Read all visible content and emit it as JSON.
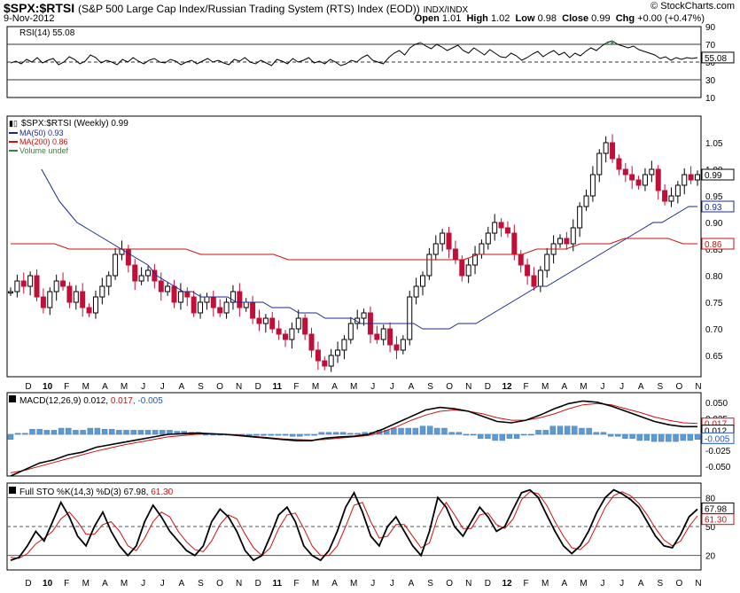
{
  "header": {
    "symbol": "$SPX:$RTSI",
    "name": "(S&P 500 Large Cap Index/Russian Trading System (RTS) Index (EOD))",
    "exchange": "INDX/INDX",
    "date": "9-Nov-2012",
    "brand": "© StockCharts.com",
    "open_label": "Open",
    "open": "1.01",
    "high_label": "High",
    "high": "1.02",
    "low_label": "Low",
    "low": "0.98",
    "close_label": "Close",
    "close": "0.99",
    "chg_label": "Chg",
    "chg": "+0.00 (+0.47%)"
  },
  "chart_data": [
    {
      "type": "line",
      "panel": "rsi",
      "label": "RSI(14) 55.08",
      "yticks": [
        90,
        70,
        50,
        30,
        10
      ],
      "ylim": [
        10,
        90
      ],
      "ref_lines": [
        70,
        50,
        30
      ],
      "last_value": "55.08",
      "series": [
        {
          "name": "RSI(14)",
          "values": [
            49,
            51,
            48,
            53,
            50,
            55,
            49,
            52,
            54,
            47,
            50,
            56,
            53,
            48,
            51,
            58,
            55,
            49,
            52,
            50,
            47,
            53,
            50,
            55,
            51,
            48,
            52,
            54,
            50,
            49,
            53,
            51,
            47,
            50,
            52,
            48,
            51,
            54,
            50,
            52,
            49,
            47,
            53,
            51,
            55,
            50,
            48,
            52,
            49,
            46,
            53,
            51,
            48,
            54,
            50,
            52,
            55,
            49,
            51,
            48,
            53,
            50,
            46,
            48,
            52,
            50,
            55,
            58,
            52,
            50,
            48,
            55,
            60,
            63,
            58,
            66,
            70,
            72,
            68,
            65,
            70,
            67,
            63,
            66,
            69,
            63,
            60,
            66,
            62,
            58,
            64,
            60,
            56,
            55,
            60,
            57,
            52,
            55,
            59,
            62,
            56,
            60,
            63,
            58,
            61,
            55,
            60,
            57,
            62,
            66,
            63,
            68,
            72,
            74,
            70,
            68,
            66,
            68,
            64,
            62,
            60,
            58,
            54,
            56,
            52,
            55,
            53,
            55,
            54,
            55
          ]
        }
      ]
    },
    {
      "type": "candlestick",
      "panel": "price",
      "label": "$SPX:$RTSI (Weekly) 0.99",
      "legend": [
        {
          "label": "MA(50) 0.93",
          "color": "#1a2a8c"
        },
        {
          "label": "MA(200) 0.86",
          "color": "#cc1111"
        },
        {
          "label": "Volume undef",
          "color": "#4a7a4a"
        }
      ],
      "yticks": [
        1.05,
        1.0,
        0.95,
        0.9,
        0.85,
        0.8,
        0.75,
        0.7,
        0.65
      ],
      "ytick_labels": [
        "1.05",
        "1.00",
        "0.95",
        "0.90",
        "0.85",
        "0.80",
        "0.75",
        "0.70",
        "0.65"
      ],
      "ylim": [
        0.61,
        1.1
      ],
      "last_close": "0.99",
      "ma50_last": "0.93",
      "ma200_last": "0.86",
      "closes": [
        0.77,
        0.79,
        0.78,
        0.8,
        0.76,
        0.74,
        0.77,
        0.79,
        0.78,
        0.75,
        0.77,
        0.74,
        0.73,
        0.76,
        0.78,
        0.8,
        0.84,
        0.85,
        0.82,
        0.79,
        0.8,
        0.81,
        0.79,
        0.77,
        0.78,
        0.75,
        0.77,
        0.76,
        0.73,
        0.75,
        0.76,
        0.74,
        0.73,
        0.75,
        0.77,
        0.74,
        0.75,
        0.72,
        0.71,
        0.72,
        0.7,
        0.69,
        0.68,
        0.7,
        0.72,
        0.69,
        0.66,
        0.64,
        0.63,
        0.65,
        0.66,
        0.68,
        0.71,
        0.72,
        0.73,
        0.69,
        0.68,
        0.7,
        0.67,
        0.66,
        0.68,
        0.76,
        0.78,
        0.8,
        0.84,
        0.86,
        0.88,
        0.85,
        0.83,
        0.8,
        0.82,
        0.84,
        0.86,
        0.88,
        0.9,
        0.89,
        0.88,
        0.84,
        0.82,
        0.8,
        0.78,
        0.81,
        0.84,
        0.86,
        0.87,
        0.86,
        0.89,
        0.93,
        0.95,
        0.99,
        1.03,
        1.05,
        1.02,
        1.0,
        0.99,
        0.98,
        0.97,
        0.99,
        1.0,
        0.96,
        0.94,
        0.95,
        0.97,
        0.99,
        0.98,
        0.99
      ],
      "ma50": [
        1.0,
        0.97,
        0.94,
        0.92,
        0.9,
        0.89,
        0.88,
        0.87,
        0.86,
        0.85,
        0.84,
        0.83,
        0.82,
        0.8,
        0.79,
        0.78,
        0.77,
        0.77,
        0.76,
        0.76,
        0.76,
        0.76,
        0.75,
        0.75,
        0.75,
        0.75,
        0.74,
        0.74,
        0.74,
        0.73,
        0.73,
        0.73,
        0.72,
        0.72,
        0.72,
        0.72,
        0.71,
        0.71,
        0.71,
        0.71,
        0.71,
        0.71,
        0.71,
        0.7,
        0.7,
        0.7,
        0.7,
        0.71,
        0.71,
        0.71,
        0.72,
        0.73,
        0.74,
        0.75,
        0.76,
        0.77,
        0.78,
        0.78,
        0.79,
        0.8,
        0.81,
        0.82,
        0.83,
        0.84,
        0.85,
        0.86,
        0.87,
        0.88,
        0.89,
        0.9,
        0.9,
        0.91,
        0.92,
        0.93,
        0.93
      ],
      "ma200": [
        0.86,
        0.86,
        0.86,
        0.86,
        0.85,
        0.85,
        0.85,
        0.85,
        0.85,
        0.85,
        0.85,
        0.85,
        0.85,
        0.84,
        0.84,
        0.84,
        0.84,
        0.84,
        0.84,
        0.83,
        0.83,
        0.83,
        0.83,
        0.83,
        0.83,
        0.83,
        0.83,
        0.83,
        0.83,
        0.83,
        0.83,
        0.83,
        0.84,
        0.84,
        0.84,
        0.84,
        0.85,
        0.85,
        0.85,
        0.86,
        0.86,
        0.86,
        0.87,
        0.87,
        0.87,
        0.87,
        0.86,
        0.86
      ]
    },
    {
      "type": "line",
      "panel": "macd",
      "label_prefix": "MACD(12,26,9)",
      "values_text": [
        "0.012",
        "0.017",
        "-0.005"
      ],
      "value_colors": [
        "#000000",
        "#cc1111",
        "#2255cc"
      ],
      "yticks": [
        0.05,
        0.025,
        0.0,
        -0.025,
        -0.05
      ],
      "ytick_labels": [
        "0.050",
        "0.025",
        "0.000",
        "-0.025",
        "-0.050"
      ],
      "ylim": [
        -0.065,
        0.065
      ],
      "last_labels": [
        "0.017",
        "0.012",
        "-0.005"
      ],
      "series": [
        {
          "name": "MACD",
          "values": [
            -0.065,
            -0.055,
            -0.045,
            -0.04,
            -0.032,
            -0.028,
            -0.02,
            -0.016,
            -0.012,
            -0.008,
            -0.004,
            0.0,
            0.001,
            0.002,
            0.001,
            0.0,
            -0.002,
            -0.004,
            -0.006,
            -0.008,
            -0.01,
            -0.01,
            -0.006,
            -0.004,
            -0.003,
            0.0,
            0.008,
            0.018,
            0.028,
            0.038,
            0.042,
            0.04,
            0.036,
            0.028,
            0.02,
            0.018,
            0.022,
            0.03,
            0.04,
            0.048,
            0.052,
            0.05,
            0.044,
            0.036,
            0.028,
            0.02,
            0.015,
            0.012,
            0.012
          ]
        },
        {
          "name": "Signal",
          "values": [
            -0.06,
            -0.056,
            -0.05,
            -0.044,
            -0.038,
            -0.032,
            -0.026,
            -0.021,
            -0.016,
            -0.012,
            -0.008,
            -0.004,
            -0.002,
            0.0,
            0.001,
            0.0,
            -0.001,
            -0.003,
            -0.005,
            -0.007,
            -0.008,
            -0.009,
            -0.008,
            -0.006,
            -0.004,
            -0.002,
            0.004,
            0.012,
            0.022,
            0.03,
            0.036,
            0.038,
            0.036,
            0.032,
            0.026,
            0.022,
            0.022,
            0.026,
            0.032,
            0.04,
            0.046,
            0.048,
            0.046,
            0.04,
            0.034,
            0.027,
            0.022,
            0.018,
            0.017
          ]
        }
      ]
    },
    {
      "type": "line",
      "panel": "sto",
      "label_prefix": "Full STO %K(14,3) %D(3)",
      "values_text": [
        "67.98",
        "61.30"
      ],
      "value_colors": [
        "#000000",
        "#cc1111"
      ],
      "yticks": [
        80,
        50,
        20
      ],
      "ylim": [
        5,
        95
      ],
      "ref_lines": [
        80,
        50,
        20
      ],
      "last_labels": [
        "67.98",
        "61.30"
      ],
      "series": [
        {
          "name": "%K",
          "values": [
            15,
            18,
            30,
            45,
            35,
            55,
            75,
            60,
            40,
            30,
            50,
            65,
            45,
            30,
            20,
            30,
            55,
            72,
            60,
            45,
            35,
            25,
            20,
            30,
            55,
            68,
            60,
            45,
            25,
            15,
            20,
            40,
            62,
            70,
            55,
            30,
            20,
            15,
            25,
            45,
            70,
            85,
            65,
            40,
            30,
            50,
            60,
            45,
            30,
            20,
            45,
            80,
            70,
            50,
            40,
            55,
            70,
            60,
            45,
            50,
            68,
            85,
            88,
            80,
            62,
            45,
            30,
            22,
            30,
            45,
            65,
            80,
            88,
            84,
            78,
            70,
            55,
            40,
            30,
            28,
            42,
            60,
            68
          ]
        },
        {
          "name": "%D",
          "values": [
            18,
            17,
            22,
            32,
            38,
            45,
            58,
            65,
            55,
            42,
            42,
            52,
            55,
            45,
            30,
            25,
            38,
            55,
            65,
            60,
            45,
            34,
            26,
            24,
            35,
            52,
            62,
            58,
            42,
            28,
            20,
            28,
            48,
            62,
            64,
            48,
            30,
            20,
            20,
            30,
            50,
            72,
            75,
            55,
            38,
            40,
            52,
            52,
            40,
            28,
            33,
            60,
            75,
            62,
            48,
            48,
            62,
            64,
            52,
            48,
            58,
            78,
            86,
            84,
            72,
            55,
            40,
            28,
            26,
            34,
            52,
            70,
            82,
            86,
            82,
            74,
            62,
            48,
            36,
            30,
            35,
            50,
            61
          ]
        }
      ]
    }
  ],
  "x_axis": {
    "labels": [
      "D",
      "10",
      "F",
      "M",
      "A",
      "M",
      "J",
      "J",
      "A",
      "S",
      "O",
      "N",
      "D",
      "11",
      "F",
      "M",
      "A",
      "M",
      "J",
      "J",
      "A",
      "S",
      "O",
      "N",
      "D",
      "12",
      "F",
      "M",
      "A",
      "M",
      "J",
      "J",
      "A",
      "S",
      "O",
      "N"
    ],
    "bold": [
      "10",
      "11",
      "12"
    ]
  }
}
